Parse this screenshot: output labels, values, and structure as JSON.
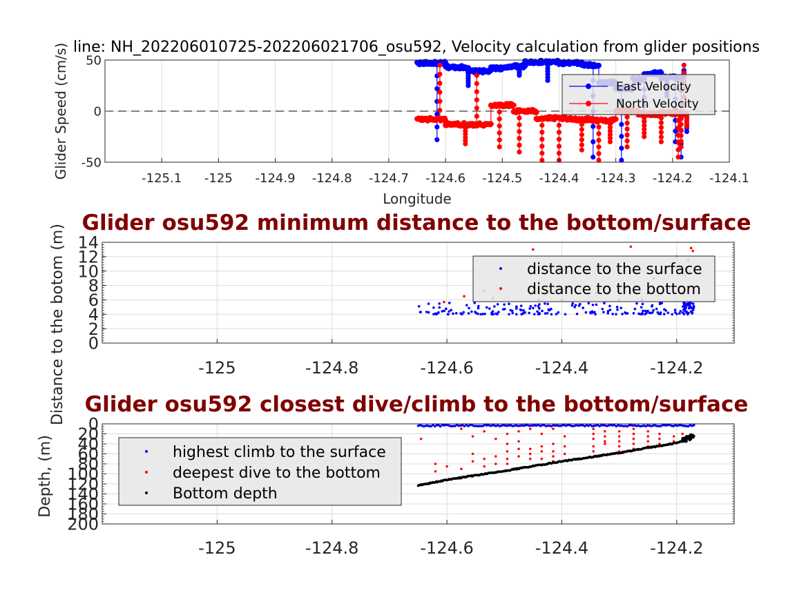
{
  "colors": {
    "east": "#0000ff",
    "north": "#ff0000",
    "surface": "#0000ff",
    "bottom_dive": "#ff0000",
    "bottom_depth": "#000000",
    "title_maroon": "#800000"
  },
  "chart_data": [
    {
      "id": "velocity",
      "type": "line",
      "title": "line: NH_202206010725-202206021706_osu592, Velocity calculation from glider positions",
      "xlabel": "Longitude",
      "ylabel": "Glider Speed (cm/s)",
      "xlim": [
        -125.2,
        -124.1
      ],
      "ylim": [
        -50,
        50
      ],
      "xticks": [
        -125.1,
        -125,
        -124.9,
        -124.8,
        -124.7,
        -124.6,
        -124.5,
        -124.4,
        -124.3,
        -124.2,
        -124.1
      ],
      "xtick_labels": [
        "-125.1",
        "-125",
        "-124.9",
        "-124.8",
        "-124.7",
        "-124.6",
        "-124.5",
        "-124.4",
        "-124.3",
        "-124.2",
        "-124.1"
      ],
      "yticks": [
        -50,
        0,
        50
      ],
      "ytick_labels": [
        "-50",
        "0",
        "50"
      ],
      "grid": true,
      "zero_line": "dashed",
      "legend_position": "top-right",
      "series": [
        {
          "name": "East Velocity",
          "segments": [
            [
              -124.65,
              -124.6,
              47
            ],
            [
              -124.6,
              -124.56,
              43
            ],
            [
              -124.56,
              -124.52,
              39
            ],
            [
              -124.52,
              -124.49,
              42
            ],
            [
              -124.49,
              -124.46,
              44
            ],
            [
              -124.46,
              -124.4,
              48
            ],
            [
              -124.4,
              -124.36,
              47
            ],
            [
              -124.36,
              -124.33,
              45
            ],
            [
              -124.33,
              -124.3,
              28
            ],
            [
              -124.3,
              -124.27,
              22
            ],
            [
              -124.27,
              -124.25,
              31
            ],
            [
              -124.25,
              -124.22,
              37
            ],
            [
              -124.22,
              -124.18,
              33
            ]
          ],
          "spikes": [
            [
              -124.615,
              -28
            ],
            [
              -124.56,
              25
            ],
            [
              -124.47,
              35
            ],
            [
              -124.42,
              30
            ],
            [
              -124.34,
              -45
            ],
            [
              -124.29,
              -48
            ],
            [
              -124.25,
              -10
            ],
            [
              -124.21,
              15
            ],
            [
              -124.195,
              -30
            ],
            [
              -124.185,
              -45
            ],
            [
              -124.18,
              40
            ],
            [
              -124.175,
              -20
            ]
          ]
        },
        {
          "name": "North Velocity",
          "segments": [
            [
              -124.65,
              -124.6,
              -8
            ],
            [
              -124.6,
              -124.52,
              -13
            ],
            [
              -124.52,
              -124.48,
              6
            ],
            [
              -124.48,
              -124.44,
              0
            ],
            [
              -124.44,
              -124.39,
              -7
            ],
            [
              -124.39,
              -124.34,
              -8
            ],
            [
              -124.34,
              -124.3,
              -9
            ],
            [
              -124.3,
              -124.26,
              0
            ],
            [
              -124.26,
              -124.22,
              -3
            ],
            [
              -124.22,
              -124.18,
              -2
            ]
          ],
          "spikes": [
            [
              -124.61,
              45
            ],
            [
              -124.6,
              -12
            ],
            [
              -124.565,
              -32
            ],
            [
              -124.545,
              35
            ],
            [
              -124.505,
              -35
            ],
            [
              -124.47,
              -40
            ],
            [
              -124.43,
              -48
            ],
            [
              -124.4,
              -48
            ],
            [
              -124.36,
              -38
            ],
            [
              -124.33,
              -48
            ],
            [
              -124.31,
              -30
            ],
            [
              -124.28,
              -35
            ],
            [
              -124.25,
              -25
            ],
            [
              -124.22,
              -30
            ],
            [
              -124.19,
              -45
            ],
            [
              -124.185,
              -35
            ],
            [
              -124.18,
              45
            ],
            [
              -124.175,
              -15
            ]
          ]
        }
      ]
    },
    {
      "id": "distance",
      "type": "scatter",
      "title": "Glider osu592 minimum distance to the bottom/surface",
      "xlabel": "",
      "ylabel": "Distance to the botom  (m)",
      "xlim": [
        -125.2,
        -124.1
      ],
      "ylim": [
        0,
        14
      ],
      "xticks": [
        -125,
        -124.8,
        -124.6,
        -124.4,
        -124.2
      ],
      "xtick_labels": [
        "-125",
        "-124.8",
        "-124.6",
        "-124.4",
        "-124.2"
      ],
      "yticks": [
        0,
        2,
        4,
        6,
        8,
        10,
        12,
        14
      ],
      "ytick_labels": [
        "0",
        "2",
        "4",
        "6",
        "8",
        "10",
        "12",
        "14"
      ],
      "grid": true,
      "legend_position": "top-right",
      "series": [
        {
          "name": "distance to the surface",
          "x_range": [
            -124.65,
            -124.17
          ],
          "y_min": 4.0,
          "y_max": 5.6,
          "count": 180
        },
        {
          "name": "distance to the bottom",
          "points": [
            [
              -124.605,
              5.7
            ],
            [
              -124.57,
              6.5
            ],
            [
              -124.535,
              7.2
            ],
            [
              -124.52,
              6.2
            ],
            [
              -124.45,
              13.0
            ],
            [
              -124.44,
              6.0
            ],
            [
              -124.42,
              10.5
            ],
            [
              -124.4,
              6.0
            ],
            [
              -124.34,
              7.0
            ],
            [
              -124.33,
              10.8
            ],
            [
              -124.3,
              6.0
            ],
            [
              -124.28,
              13.4
            ],
            [
              -124.27,
              7.8
            ],
            [
              -124.26,
              6.0
            ],
            [
              -124.24,
              9.0
            ],
            [
              -124.22,
              10.0
            ],
            [
              -124.2,
              12.0
            ],
            [
              -124.19,
              7.0
            ],
            [
              -124.185,
              9.5
            ],
            [
              -124.18,
              11.5
            ],
            [
              -124.175,
              13.2
            ],
            [
              -124.172,
              12.8
            ]
          ]
        }
      ]
    },
    {
      "id": "depth",
      "type": "scatter",
      "title": "Glider osu592 closest dive/climb to the bottom/surface",
      "xlabel": "",
      "ylabel": "Depth, (m)",
      "xlim": [
        -125.2,
        -124.1
      ],
      "ylim": [
        200,
        0
      ],
      "xticks": [
        -125,
        -124.8,
        -124.6,
        -124.4,
        -124.2
      ],
      "xtick_labels": [
        "-125",
        "-124.8",
        "-124.6",
        "-124.4",
        "-124.2"
      ],
      "yticks": [
        0,
        20,
        40,
        60,
        80,
        100,
        120,
        140,
        160,
        180,
        200
      ],
      "ytick_labels": [
        "0",
        "20",
        "40",
        "60",
        "80",
        "100",
        "120",
        "140",
        "160",
        "180",
        "200"
      ],
      "grid": true,
      "legend_position": "top-left",
      "series": [
        {
          "name": "highest climb to the surface",
          "x_range": [
            -124.65,
            -124.17
          ],
          "y_min": 2,
          "y_max": 5,
          "count": 150
        },
        {
          "name": "deepest dive to the bottom",
          "columns": [
            [
              -124.645,
              [
                30
              ]
            ],
            [
              -124.62,
              [
                80,
                95
              ]
            ],
            [
              -124.6,
              [
                85
              ]
            ],
            [
              -124.575,
              [
                10,
                90
              ]
            ],
            [
              -124.555,
              [
                25,
                60,
                75
              ]
            ],
            [
              -124.535,
              [
                15,
                70,
                85
              ]
            ],
            [
              -124.515,
              [
                30,
                65,
                80
              ]
            ],
            [
              -124.495,
              [
                20,
                40,
                55,
                70,
                80
              ]
            ],
            [
              -124.475,
              [
                15,
                35,
                50,
                65
              ]
            ],
            [
              -124.455,
              [
                10,
                50,
                60,
                70
              ]
            ],
            [
              -124.435,
              [
                20,
                45,
                55,
                70
              ]
            ],
            [
              -124.415,
              [
                10,
                40,
                55,
                65,
                75
              ]
            ],
            [
              -124.395,
              [
                25,
                45,
                60
              ]
            ],
            [
              -124.345,
              [
                10,
                20,
                30,
                45,
                55
              ]
            ],
            [
              -124.325,
              [
                15,
                25,
                35,
                40
              ]
            ],
            [
              -124.3,
              [
                15,
                25,
                35,
                45,
                55
              ]
            ],
            [
              -124.275,
              [
                10,
                20,
                30,
                40,
                50
              ]
            ],
            [
              -124.25,
              [
                15,
                25,
                35,
                45
              ]
            ],
            [
              -124.23,
              [
                20,
                30,
                40
              ]
            ],
            [
              -124.205,
              [
                25,
                35
              ]
            ],
            [
              -124.19,
              [
                20,
                30
              ]
            ],
            [
              -124.18,
              [
                25,
                30
              ]
            ]
          ]
        },
        {
          "name": "Bottom depth",
          "profile": [
            [
              -124.65,
              123
            ],
            [
              -124.6,
              112
            ],
            [
              -124.5,
              94
            ],
            [
              -124.4,
              75
            ],
            [
              -124.3,
              58
            ],
            [
              -124.25,
              48
            ],
            [
              -124.2,
              38
            ],
            [
              -124.17,
              24
            ]
          ],
          "count": 320
        }
      ]
    }
  ]
}
